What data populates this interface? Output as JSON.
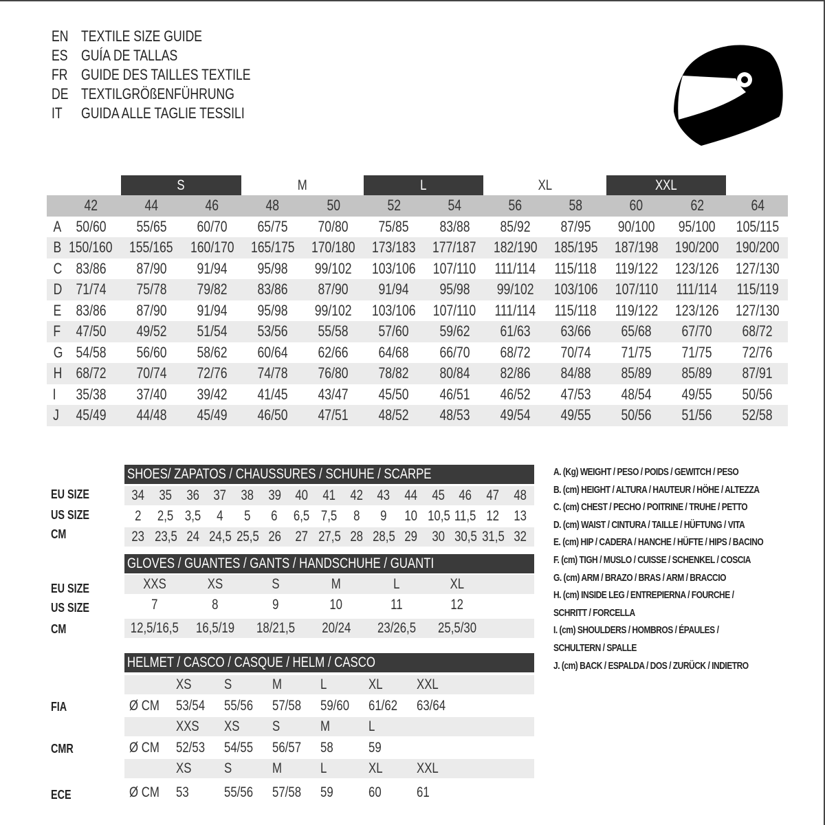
{
  "titles": [
    {
      "code": "EN",
      "text": "TEXTILE SIZE GUIDE"
    },
    {
      "code": "ES",
      "text": "GUÍA DE TALLAS"
    },
    {
      "code": "FR",
      "text": "GUIDE DES TAILLES TEXTILE"
    },
    {
      "code": "DE",
      "text": "TEXTILGRÖßENFÜHRUNG"
    },
    {
      "code": "IT",
      "text": "GUIDA ALLE TAGLIE TESSILI"
    }
  ],
  "icon": "motorcycle-helmet-icon",
  "colors": {
    "dark_bar": "#3a3a3a",
    "header_gray": "#c4c4c4",
    "row_shade": "#ebebeb"
  },
  "textile": {
    "letter_sizes": [
      "S",
      "M",
      "L",
      "XL",
      "XXL"
    ],
    "sizes": [
      "42",
      "44",
      "46",
      "48",
      "50",
      "52",
      "54",
      "56",
      "58",
      "60",
      "62",
      "64"
    ],
    "rows": [
      {
        "letter": "A",
        "values": [
          "50/60",
          "55/65",
          "60/70",
          "65/75",
          "70/80",
          "75/85",
          "83/88",
          "85/92",
          "87/95",
          "90/100",
          "95/100",
          "105/115"
        ]
      },
      {
        "letter": "B",
        "values": [
          "150/160",
          "155/165",
          "160/170",
          "165/175",
          "170/180",
          "173/183",
          "177/187",
          "182/190",
          "185/195",
          "187/198",
          "190/200",
          "190/200"
        ]
      },
      {
        "letter": "C",
        "values": [
          "83/86",
          "87/90",
          "91/94",
          "95/98",
          "99/102",
          "103/106",
          "107/110",
          "111/114",
          "115/118",
          "119/122",
          "123/126",
          "127/130"
        ]
      },
      {
        "letter": "D",
        "values": [
          "71/74",
          "75/78",
          "79/82",
          "83/86",
          "87/90",
          "91/94",
          "95/98",
          "99/102",
          "103/106",
          "107/110",
          "111/114",
          "115/119"
        ]
      },
      {
        "letter": "E",
        "values": [
          "83/86",
          "87/90",
          "91/94",
          "95/98",
          "99/102",
          "103/106",
          "107/110",
          "111/114",
          "115/118",
          "119/122",
          "123/126",
          "127/130"
        ]
      },
      {
        "letter": "F",
        "values": [
          "47/50",
          "49/52",
          "51/54",
          "53/56",
          "55/58",
          "57/60",
          "59/62",
          "61/63",
          "63/66",
          "65/68",
          "67/70",
          "68/72"
        ]
      },
      {
        "letter": "G",
        "values": [
          "54/58",
          "56/60",
          "58/62",
          "60/64",
          "62/66",
          "64/68",
          "66/70",
          "68/72",
          "70/74",
          "71/75",
          "71/75",
          "72/76"
        ]
      },
      {
        "letter": "H",
        "values": [
          "68/72",
          "70/74",
          "72/76",
          "74/78",
          "76/80",
          "78/82",
          "80/84",
          "82/86",
          "84/88",
          "85/89",
          "85/89",
          "87/91"
        ]
      },
      {
        "letter": "I",
        "values": [
          "35/38",
          "37/40",
          "39/42",
          "41/45",
          "43/47",
          "45/50",
          "46/51",
          "46/52",
          "47/53",
          "48/54",
          "49/55",
          "50/56"
        ]
      },
      {
        "letter": "J",
        "values": [
          "45/49",
          "44/48",
          "45/49",
          "46/50",
          "47/51",
          "48/52",
          "48/53",
          "49/54",
          "49/55",
          "50/56",
          "51/56",
          "52/58"
        ]
      }
    ]
  },
  "shoes": {
    "title": "SHOES/ ZAPATOS / CHAUSSURES / SCHUHE / SCARPE",
    "rows": [
      {
        "label": "EU SIZE",
        "values": [
          "34",
          "35",
          "36",
          "37",
          "38",
          "39",
          "40",
          "41",
          "42",
          "43",
          "44",
          "45",
          "46",
          "47",
          "48"
        ]
      },
      {
        "label": "US SIZE",
        "values": [
          "2",
          "2,5",
          "3,5",
          "4",
          "5",
          "6",
          "6,5",
          "7,5",
          "8",
          "9",
          "10",
          "10,5",
          "11,5",
          "12",
          "13"
        ]
      },
      {
        "label": "CM",
        "values": [
          "23",
          "23,5",
          "24",
          "24,5",
          "25,5",
          "26",
          "27",
          "27,5",
          "28",
          "28,5",
          "29",
          "30",
          "30,5",
          "31,5",
          "32"
        ]
      }
    ]
  },
  "gloves": {
    "title": "GLOVES / GUANTES / GANTS / HANDSCHUHE / GUANTI",
    "rows": [
      {
        "label": "EU SIZE",
        "values": [
          "XXS",
          "XS",
          "S",
          "M",
          "L",
          "XL"
        ]
      },
      {
        "label": "US SIZE",
        "values": [
          "7",
          "8",
          "9",
          "10",
          "11",
          "12"
        ]
      },
      {
        "label": "CM",
        "values": [
          "12,5/16,5",
          "16,5/19",
          "18/21,5",
          "20/24",
          "23/26,5",
          "25,5/30"
        ]
      }
    ]
  },
  "helmet": {
    "title": "HELMET / CASCO / CASQUE / HELM / CASCO",
    "diameter_label": "Ø CM",
    "standards": [
      {
        "label": "FIA",
        "sizes": [
          "XS",
          "S",
          "M",
          "L",
          "XL",
          "XXL"
        ],
        "values": [
          "53/54",
          "55/56",
          "57/58",
          "59/60",
          "61/62",
          "63/64"
        ]
      },
      {
        "label": "CMR",
        "sizes": [
          "XXS",
          "XS",
          "S",
          "M",
          "L"
        ],
        "values": [
          "52/53",
          "54/55",
          "56/57",
          "58",
          "59"
        ]
      },
      {
        "label": "ECE",
        "sizes": [
          "XS",
          "S",
          "M",
          "L",
          "XL",
          "XXL"
        ],
        "values": [
          "53",
          "55/56",
          "57/58",
          "59",
          "60",
          "61"
        ]
      }
    ]
  },
  "legend": [
    "A. (Kg) WEIGHT / PESO / POIDS / GEWITCH / PESO",
    "B. (cm) HEIGHT / ALTURA / HAUTEUR / HÖHE / ALTEZZA",
    "C. (cm) CHEST / PECHO / POITRINE / TRUHE / PETTO",
    "D. (cm) WAIST / CINTURA / TAILLE / HÜFTUNG / VITA",
    "E. (cm) HIP / CADERA / HANCHE / HÜFTE / HIPS /  BACINO",
    "F.  (cm) TIGH / MUSLO / CUISSE / SCHENKEL / COSCIA",
    "G. (cm) ARM  / BRAZO / BRAS / ARM / BRACCIO",
    "H. (cm) INSIDE LEG / ENTREPIERNA / FOURCHE /",
    "SCHRITT / FORCELLA",
    "I.  (cm) SHOULDERS / HOMBROS / ÉPAULES /",
    "SCHULTERN / SPALLE",
    "J. (cm) BACK / ESPALDA / DOS / ZURÜCK / INDIETRO"
  ]
}
